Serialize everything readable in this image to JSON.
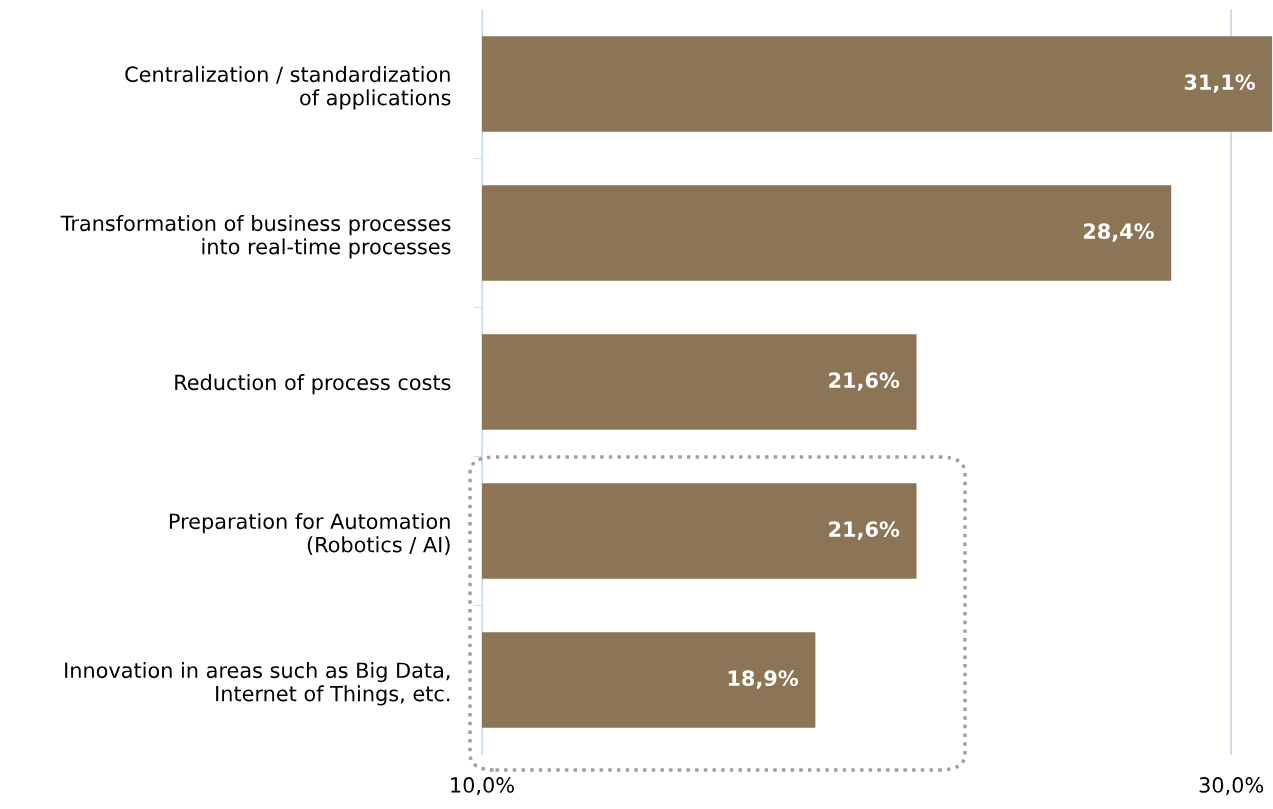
{
  "chart_data": {
    "type": "bar",
    "orientation": "horizontal",
    "categories": [
      "Centralization / standardization\nof applications",
      "Transformation of business processes\ninto real-time processes",
      "Reduction of process costs",
      "Preparation for Automation\n(Robotics / AI)",
      "Innovation in areas such as Big Data,\nInternet of Things, etc."
    ],
    "values": [
      31.1,
      28.4,
      21.6,
      21.6,
      18.9
    ],
    "value_labels": [
      "31,1%",
      "28,4%",
      "21,6%",
      "21,6%",
      "18,9%"
    ],
    "color": "#8b7556",
    "xlim": [
      10,
      31.1
    ],
    "xticks": [
      {
        "value": 10,
        "label": "10,0%"
      },
      {
        "value": 30,
        "label": "30,0%"
      }
    ],
    "grid": "x"
  }
}
